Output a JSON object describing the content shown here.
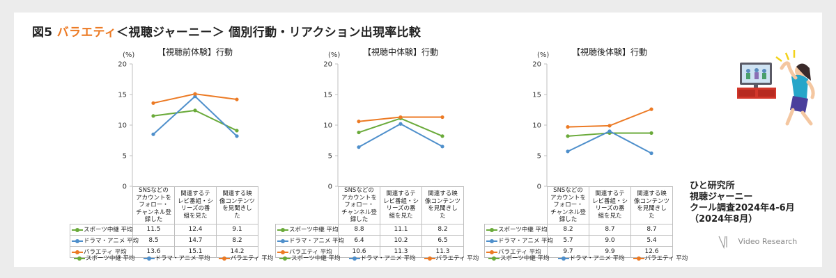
{
  "title": {
    "prefix": "図5",
    "highlight": "バラエティ",
    "suffix": "＜視聴ジャーニー＞ 個別行動・リアクション出現率比較"
  },
  "colors": {
    "sports": "#6aaa3a",
    "drama": "#4e8fcb",
    "variety": "#ec7a24"
  },
  "note_lines": [
    "ひと研究所",
    "視聴ジャーニー",
    "クール調査2024年4-6月",
    "（2024年8月）"
  ],
  "logo": "Video Research",
  "chart_data": [
    {
      "type": "line",
      "title": "【視聴前体験】行動",
      "unit": "(%)",
      "ylim": [
        0,
        20
      ],
      "yticks": [
        "0",
        "5",
        "10",
        "15",
        "20"
      ],
      "categories": [
        "SNSなどのアカウントをフォロー・チャンネル登録した",
        "関連するテレビ番組・シリーズの番組を見た",
        "関連する映像コンテンツを見聞きした"
      ],
      "category_lines": [
        [
          "SNSなどの",
          "アカウントを",
          "フォロー・",
          "チャンネル登",
          "録した"
        ],
        [
          "関連するテ",
          "レビ番組・シ",
          "リーズの番",
          "組を見た"
        ],
        [
          "関連する映",
          "像コンテンツ",
          "を見聞きし",
          "た"
        ]
      ],
      "series": [
        {
          "name": "スポーツ中継 平均",
          "values": [
            "11.5",
            "12.4",
            "9.1"
          ]
        },
        {
          "name": "ドラマ・アニメ 平均",
          "values": [
            "8.5",
            "14.7",
            "8.2"
          ]
        },
        {
          "name": "バラエティ 平均",
          "values": [
            "13.6",
            "15.1",
            "14.2"
          ]
        }
      ]
    },
    {
      "type": "line",
      "title": "【視聴中体験】行動",
      "unit": "(%)",
      "ylim": [
        0,
        20
      ],
      "yticks": [
        "0",
        "5",
        "10",
        "15",
        "20"
      ],
      "categories": [
        "SNSなどのアカウントをフォロー・チャンネル登録した",
        "関連するテレビ番組・シリーズの番組を見た",
        "関連する映像コンテンツを見聞きした"
      ],
      "category_lines": [
        [
          "SNSなどの",
          "アカウントを",
          "フォロー・",
          "チャンネル登",
          "録した"
        ],
        [
          "関連するテ",
          "レビ番組・シ",
          "リーズの番",
          "組を見た"
        ],
        [
          "関連する映",
          "像コンテンツ",
          "を見聞きし",
          "た"
        ]
      ],
      "series": [
        {
          "name": "スポーツ中継 平均",
          "values": [
            "8.8",
            "11.1",
            "8.2"
          ]
        },
        {
          "name": "ドラマ・アニメ 平均",
          "values": [
            "6.4",
            "10.2",
            "6.5"
          ]
        },
        {
          "name": "バラエティ 平均",
          "values": [
            "10.6",
            "11.3",
            "11.3"
          ]
        }
      ]
    },
    {
      "type": "line",
      "title": "【視聴後体験】行動",
      "unit": "(%)",
      "ylim": [
        0,
        20
      ],
      "yticks": [
        "0",
        "5",
        "10",
        "15",
        "20"
      ],
      "categories": [
        "SNSなどのアカウントをフォロー・チャンネル登録した",
        "関連するテレビ番組・シリーズの番組を見た",
        "関連する映像コンテンツを見聞きした"
      ],
      "category_lines": [
        [
          "SNSなどの",
          "アカウントを",
          "フォロー・",
          "チャンネル登",
          "録した"
        ],
        [
          "関連するテ",
          "レビ番組・シ",
          "リーズの番",
          "組を見た"
        ],
        [
          "関連する映",
          "像コンテンツ",
          "を見聞きし",
          "た"
        ]
      ],
      "series": [
        {
          "name": "スポーツ中継 平均",
          "values": [
            "8.2",
            "8.7",
            "8.7"
          ]
        },
        {
          "name": "ドラマ・アニメ 平均",
          "values": [
            "5.7",
            "9.0",
            "5.4"
          ]
        },
        {
          "name": "バラエティ 平均",
          "values": [
            "9.7",
            "9.9",
            "12.6"
          ]
        }
      ]
    }
  ],
  "legend": [
    "スポーツ中継 平均",
    "ドラマ・アニメ 平均",
    "バラエティ 平均"
  ]
}
